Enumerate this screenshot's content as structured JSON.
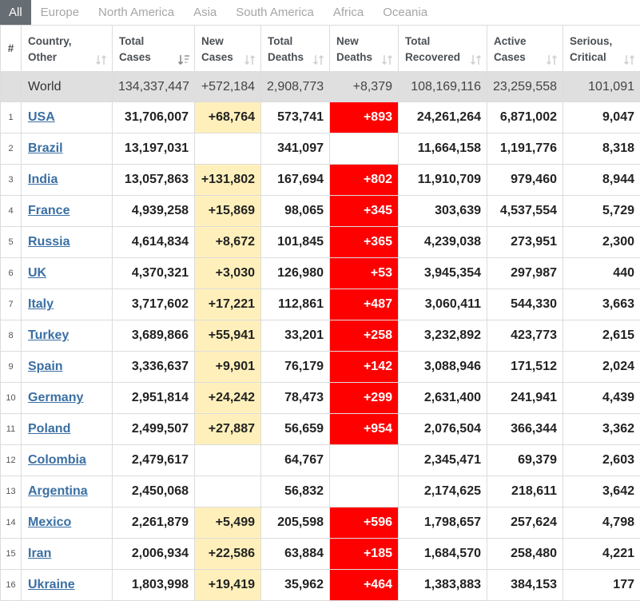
{
  "tabs": [
    "All",
    "Europe",
    "North America",
    "Asia",
    "South America",
    "Africa",
    "Oceania"
  ],
  "active_tab": "All",
  "headers": {
    "rank": "#",
    "country": [
      "Country,",
      "Other"
    ],
    "total_cases": [
      "Total",
      "Cases"
    ],
    "new_cases": [
      "New",
      "Cases"
    ],
    "total_deaths": [
      "Total",
      "Deaths"
    ],
    "new_deaths": [
      "New",
      "Deaths"
    ],
    "total_recovered": [
      "Total",
      "Recovered"
    ],
    "active_cases": [
      "Active",
      "Cases"
    ],
    "serious_critical": [
      "Serious,",
      "Critical"
    ]
  },
  "world": {
    "country": "World",
    "total_cases": "134,337,447",
    "new_cases": "+572,184",
    "total_deaths": "2,908,773",
    "new_deaths": "+8,379",
    "total_recovered": "108,169,116",
    "active_cases": "23,259,558",
    "serious_critical": "101,091"
  },
  "rows": [
    {
      "rank": "1",
      "country": "USA",
      "total_cases": "31,706,007",
      "new_cases": "+68,764",
      "total_deaths": "573,741",
      "new_deaths": "+893",
      "total_recovered": "24,261,264",
      "active_cases": "6,871,002",
      "serious_critical": "9,047"
    },
    {
      "rank": "2",
      "country": "Brazil",
      "total_cases": "13,197,031",
      "new_cases": "",
      "total_deaths": "341,097",
      "new_deaths": "",
      "total_recovered": "11,664,158",
      "active_cases": "1,191,776",
      "serious_critical": "8,318"
    },
    {
      "rank": "3",
      "country": "India",
      "total_cases": "13,057,863",
      "new_cases": "+131,802",
      "total_deaths": "167,694",
      "new_deaths": "+802",
      "total_recovered": "11,910,709",
      "active_cases": "979,460",
      "serious_critical": "8,944"
    },
    {
      "rank": "4",
      "country": "France",
      "total_cases": "4,939,258",
      "new_cases": "+15,869",
      "total_deaths": "98,065",
      "new_deaths": "+345",
      "total_recovered": "303,639",
      "active_cases": "4,537,554",
      "serious_critical": "5,729"
    },
    {
      "rank": "5",
      "country": "Russia",
      "total_cases": "4,614,834",
      "new_cases": "+8,672",
      "total_deaths": "101,845",
      "new_deaths": "+365",
      "total_recovered": "4,239,038",
      "active_cases": "273,951",
      "serious_critical": "2,300"
    },
    {
      "rank": "6",
      "country": "UK",
      "total_cases": "4,370,321",
      "new_cases": "+3,030",
      "total_deaths": "126,980",
      "new_deaths": "+53",
      "total_recovered": "3,945,354",
      "active_cases": "297,987",
      "serious_critical": "440"
    },
    {
      "rank": "7",
      "country": "Italy",
      "total_cases": "3,717,602",
      "new_cases": "+17,221",
      "total_deaths": "112,861",
      "new_deaths": "+487",
      "total_recovered": "3,060,411",
      "active_cases": "544,330",
      "serious_critical": "3,663"
    },
    {
      "rank": "8",
      "country": "Turkey",
      "total_cases": "3,689,866",
      "new_cases": "+55,941",
      "total_deaths": "33,201",
      "new_deaths": "+258",
      "total_recovered": "3,232,892",
      "active_cases": "423,773",
      "serious_critical": "2,615"
    },
    {
      "rank": "9",
      "country": "Spain",
      "total_cases": "3,336,637",
      "new_cases": "+9,901",
      "total_deaths": "76,179",
      "new_deaths": "+142",
      "total_recovered": "3,088,946",
      "active_cases": "171,512",
      "serious_critical": "2,024"
    },
    {
      "rank": "10",
      "country": "Germany",
      "total_cases": "2,951,814",
      "new_cases": "+24,242",
      "total_deaths": "78,473",
      "new_deaths": "+299",
      "total_recovered": "2,631,400",
      "active_cases": "241,941",
      "serious_critical": "4,439"
    },
    {
      "rank": "11",
      "country": "Poland",
      "total_cases": "2,499,507",
      "new_cases": "+27,887",
      "total_deaths": "56,659",
      "new_deaths": "+954",
      "total_recovered": "2,076,504",
      "active_cases": "366,344",
      "serious_critical": "3,362"
    },
    {
      "rank": "12",
      "country": "Colombia",
      "total_cases": "2,479,617",
      "new_cases": "",
      "total_deaths": "64,767",
      "new_deaths": "",
      "total_recovered": "2,345,471",
      "active_cases": "69,379",
      "serious_critical": "2,603"
    },
    {
      "rank": "13",
      "country": "Argentina",
      "total_cases": "2,450,068",
      "new_cases": "",
      "total_deaths": "56,832",
      "new_deaths": "",
      "total_recovered": "2,174,625",
      "active_cases": "218,611",
      "serious_critical": "3,642"
    },
    {
      "rank": "14",
      "country": "Mexico",
      "total_cases": "2,261,879",
      "new_cases": "+5,499",
      "total_deaths": "205,598",
      "new_deaths": "+596",
      "total_recovered": "1,798,657",
      "active_cases": "257,624",
      "serious_critical": "4,798"
    },
    {
      "rank": "15",
      "country": "Iran",
      "total_cases": "2,006,934",
      "new_cases": "+22,586",
      "total_deaths": "63,884",
      "new_deaths": "+185",
      "total_recovered": "1,684,570",
      "active_cases": "258,480",
      "serious_critical": "4,221"
    },
    {
      "rank": "16",
      "country": "Ukraine",
      "total_cases": "1,803,998",
      "new_cases": "+19,419",
      "total_deaths": "35,962",
      "new_deaths": "+464",
      "total_recovered": "1,383,883",
      "active_cases": "384,153",
      "serious_critical": "177"
    }
  ],
  "colors": {
    "active_tab_bg": "#666d73",
    "new_cases_highlight": "#fff0bb",
    "new_deaths_highlight": "#fe0000",
    "world_row_bg": "#dfdfdf",
    "country_link": "#3a6fa3"
  },
  "icons": {
    "sort": "sort-arrows-icon",
    "sort_active": "sort-descending-icon"
  }
}
